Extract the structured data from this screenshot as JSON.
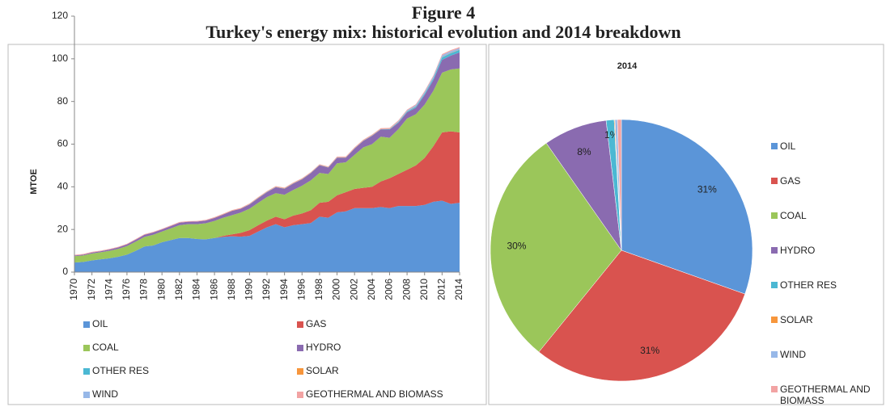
{
  "title": "Figure 4",
  "subtitle": "Turkey's energy mix: historical evolution and 2014 breakdown",
  "chart_data": [
    {
      "type": "area",
      "y_label": "MTOE",
      "categories": [
        "1970",
        null,
        "1972",
        null,
        "1974",
        null,
        "1976",
        null,
        "1978",
        null,
        "1980",
        null,
        "1982",
        null,
        "1984",
        null,
        "1986",
        null,
        "1988",
        null,
        "1990",
        null,
        "1992",
        null,
        "1994",
        null,
        "1996",
        null,
        "1998",
        null,
        "2000",
        null,
        "2002",
        null,
        "2004",
        null,
        "2006",
        null,
        "2008",
        null,
        "2010",
        null,
        "2012",
        null,
        "2014"
      ],
      "ylim": [
        0,
        120
      ],
      "yticks": [
        0,
        20,
        40,
        60,
        80,
        100,
        120
      ],
      "stacked": true,
      "legend": "bottom",
      "series": [
        {
          "name": "OIL",
          "color": "#5b95d8",
          "values": [
            4.5,
            4.8,
            5.5,
            6,
            6.5,
            7.2,
            8.2,
            10,
            12,
            12.5,
            14,
            15,
            16,
            16,
            15.5,
            15.4,
            16,
            16.5,
            16.8,
            16.6,
            17,
            19,
            21,
            22.5,
            21,
            22,
            22.5,
            23,
            26,
            25.5,
            28,
            28.5,
            30,
            30,
            30,
            30.5,
            30,
            31,
            31,
            31,
            31.5,
            33,
            33.5,
            32,
            32.5
          ]
        },
        {
          "name": "GAS",
          "color": "#d9534f",
          "values": [
            0,
            0,
            0,
            0,
            0,
            0,
            0,
            0,
            0,
            0,
            0,
            0,
            0,
            0,
            0,
            0,
            0,
            0.5,
            0.9,
            1.8,
            2.7,
            3,
            3.2,
            3.5,
            3.8,
            4.5,
            5,
            6,
            6.5,
            7.5,
            8,
            9,
            9,
            9.5,
            10,
            12,
            14,
            15,
            17,
            19,
            22,
            26,
            32,
            34,
            33
          ]
        },
        {
          "name": "COAL",
          "color": "#9bc65a",
          "values": [
            3,
            3,
            3.2,
            3.3,
            3.5,
            3.7,
            4,
            4.3,
            4.5,
            5,
            5,
            5.5,
            6,
            6.5,
            7,
            7.5,
            8,
            8.5,
            9,
            9.5,
            10,
            10.5,
            11,
            11,
            11.5,
            12,
            13,
            14,
            14,
            13,
            15,
            14,
            16,
            19,
            20,
            21,
            19,
            21,
            24,
            24,
            25,
            26,
            28,
            29,
            30
          ]
        },
        {
          "name": "HYDRO",
          "color": "#8a6bb0",
          "values": [
            0.3,
            0.4,
            0.5,
            0.5,
            0.6,
            0.7,
            0.8,
            0.9,
            1,
            1.1,
            1,
            1.1,
            1.2,
            1.1,
            1.2,
            1.3,
            1.4,
            1.5,
            2,
            1.8,
            2,
            2.2,
            2.3,
            2.8,
            2.8,
            3,
            3,
            3.4,
            3.6,
            3,
            2.6,
            2.1,
            2.9,
            3,
            3.9,
            3.4,
            3.8,
            3,
            2.9,
            3.1,
            4.5,
            5,
            6,
            6.5,
            7.5
          ]
        },
        {
          "name": "OTHER RES",
          "color": "#4bb8d3",
          "values": [
            0,
            0,
            0,
            0,
            0,
            0,
            0,
            0,
            0,
            0,
            0,
            0,
            0,
            0,
            0,
            0,
            0,
            0,
            0,
            0,
            0.1,
            0.1,
            0.1,
            0.1,
            0.1,
            0.1,
            0.1,
            0.1,
            0.1,
            0.1,
            0.1,
            0.1,
            0.1,
            0.1,
            0.1,
            0.1,
            0.2,
            0.3,
            0.4,
            0.5,
            0.6,
            0.8,
            1.2,
            1.2,
            1.2
          ]
        },
        {
          "name": "SOLAR",
          "color": "#f7963c",
          "values": [
            0,
            0,
            0,
            0,
            0,
            0,
            0,
            0,
            0,
            0,
            0,
            0,
            0,
            0,
            0,
            0,
            0.1,
            0.1,
            0.1,
            0.1,
            0.1,
            0.1,
            0.1,
            0.1,
            0.1,
            0.1,
            0.1,
            0.1,
            0.1,
            0.1,
            0.1,
            0.1,
            0.1,
            0.1,
            0.1,
            0.1,
            0.1,
            0.1,
            0.1,
            0.1,
            0.1,
            0.1,
            0.1,
            0.1,
            0.1
          ]
        },
        {
          "name": "WIND",
          "color": "#97b8e8",
          "values": [
            0,
            0,
            0,
            0,
            0,
            0,
            0,
            0,
            0,
            0,
            0,
            0,
            0,
            0,
            0,
            0,
            0,
            0,
            0,
            0,
            0,
            0,
            0,
            0,
            0,
            0,
            0,
            0,
            0,
            0,
            0,
            0,
            0,
            0,
            0,
            0,
            0.1,
            0.3,
            0.4,
            0.6,
            0.7,
            0.8,
            0.9,
            0.8,
            0.7
          ]
        },
        {
          "name": "GEOTHERMAL AND BIOMASS",
          "color": "#f2a3a3",
          "values": [
            0.3,
            0.3,
            0.3,
            0.3,
            0.3,
            0.3,
            0.3,
            0.3,
            0.3,
            0.3,
            0.3,
            0.3,
            0.3,
            0.3,
            0.3,
            0.3,
            0.3,
            0.3,
            0.3,
            0.3,
            0.3,
            0.3,
            0.3,
            0.3,
            0.3,
            0.3,
            0.3,
            0.3,
            0.3,
            0.3,
            0.4,
            0.4,
            0.4,
            0.4,
            0.4,
            0.4,
            0.4,
            0.4,
            0.4,
            0.4,
            0.5,
            0.5,
            0.5,
            0.5,
            0.5
          ]
        }
      ]
    },
    {
      "type": "pie",
      "title": "2014",
      "legend": "right",
      "categories": [
        "OIL",
        "GAS",
        "COAL",
        "HYDRO",
        "OTHER RES",
        "SOLAR",
        "WIND",
        "GEOTHERMAL AND BIOMASS"
      ],
      "colors": [
        "#5b95d8",
        "#d9534f",
        "#9bc65a",
        "#8a6bb0",
        "#4bb8d3",
        "#f7963c",
        "#97b8e8",
        "#f2a3a3"
      ],
      "values": [
        31,
        31,
        30,
        8,
        1,
        0.1,
        0.3,
        0.5
      ],
      "value_labels": [
        "31%",
        "31%",
        "30%",
        "8%",
        "1%",
        null,
        null,
        null
      ]
    }
  ]
}
